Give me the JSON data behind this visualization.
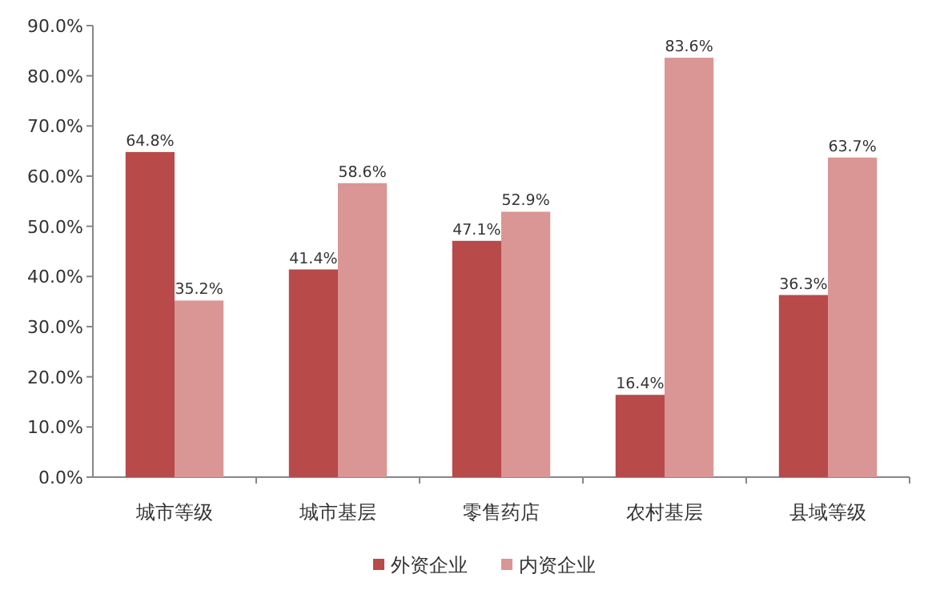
{
  "chart_data": {
    "type": "bar",
    "categories": [
      "城市等级",
      "城市基层",
      "零售药店",
      "农村基层",
      "县域等级"
    ],
    "series": [
      {
        "name": "外资企业",
        "color": "#b84a4a",
        "values": [
          64.8,
          41.4,
          47.1,
          16.4,
          36.3
        ],
        "value_labels": [
          "64.8%",
          "41.4%",
          "47.1%",
          "16.4%",
          "36.3%"
        ]
      },
      {
        "name": "内资企业",
        "color": "#d99694",
        "values": [
          35.2,
          58.6,
          52.9,
          83.6,
          63.7
        ],
        "value_labels": [
          "35.2%",
          "58.6%",
          "52.9%",
          "83.6%",
          "63.7%"
        ]
      }
    ],
    "ylim": [
      0,
      90
    ],
    "yticks": [
      {
        "value": 0,
        "label": "0.0%"
      },
      {
        "value": 10,
        "label": "10.0%"
      },
      {
        "value": 20,
        "label": "20.0%"
      },
      {
        "value": 30,
        "label": "30.0%"
      },
      {
        "value": 40,
        "label": "40.0%"
      },
      {
        "value": 50,
        "label": "50.0%"
      },
      {
        "value": 60,
        "label": "60.0%"
      },
      {
        "value": 70,
        "label": "70.0%"
      },
      {
        "value": 80,
        "label": "80.0%"
      },
      {
        "value": 90,
        "label": "90.0%"
      }
    ],
    "legend": "bottom"
  }
}
